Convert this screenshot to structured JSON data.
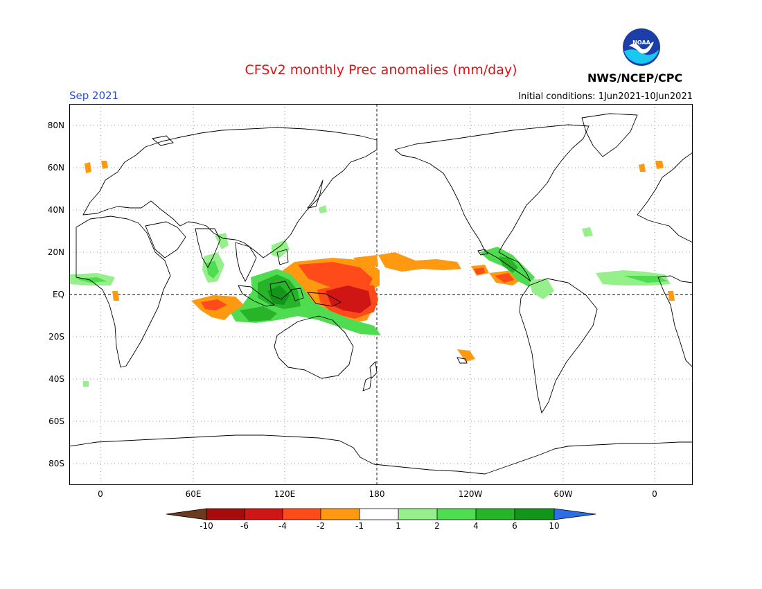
{
  "header": {
    "title": "CFSv2 monthly Prec anomalies (mm/day)",
    "month": "Sep 2021",
    "initial_conditions": "Initial conditions: 1Jun2021-10Jun2021",
    "agency": "NWS/NCEP/CPC",
    "logo_text": "NOAA"
  },
  "map": {
    "projection": "equirectangular",
    "center_longitude": "180",
    "lon_range": [
      -20,
      380
    ],
    "lat_range": [
      -90,
      90
    ],
    "grid": "dotted",
    "lat_labels": [
      "80N",
      "60N",
      "40N",
      "20N",
      "EQ",
      "20S",
      "40S",
      "60S",
      "80S"
    ],
    "lon_labels": [
      "0",
      "60E",
      "120E",
      "180",
      "120W",
      "60W",
      "0"
    ]
  },
  "colorbar": {
    "labels": [
      "-10",
      "-6",
      "-4",
      "-2",
      "-1",
      "1",
      "2",
      "4",
      "6",
      "10"
    ],
    "colors": [
      "#6b3a1f",
      "#a50c0c",
      "#d01515",
      "#ff4a1a",
      "#ff9a10",
      "#ffffff",
      "#95ef8a",
      "#50dc50",
      "#28b428",
      "#13951a",
      "#2c6de8"
    ]
  },
  "anomalies": [
    {
      "region": "West Pacific north of equator",
      "level": "-2",
      "color": "#ff9a10"
    },
    {
      "region": "West Pacific near New Guinea",
      "level": "-6",
      "color": "#d01515"
    },
    {
      "region": "Maritime Continent",
      "level": "6",
      "color": "#28b428"
    },
    {
      "region": "Southeast Indian Ocean",
      "level": "4",
      "color": "#50dc50"
    },
    {
      "region": "Central Indian Ocean",
      "level": "-2",
      "color": "#ff9a10"
    },
    {
      "region": "Central Pacific ITCZ",
      "level": "-2",
      "color": "#ff9a10"
    },
    {
      "region": "Eastern Pacific off Mexico",
      "level": "-4",
      "color": "#ff4a1a"
    },
    {
      "region": "Central America",
      "level": "4",
      "color": "#50dc50"
    },
    {
      "region": "Tropical Atlantic",
      "level": "2",
      "color": "#95ef8a"
    }
  ]
}
